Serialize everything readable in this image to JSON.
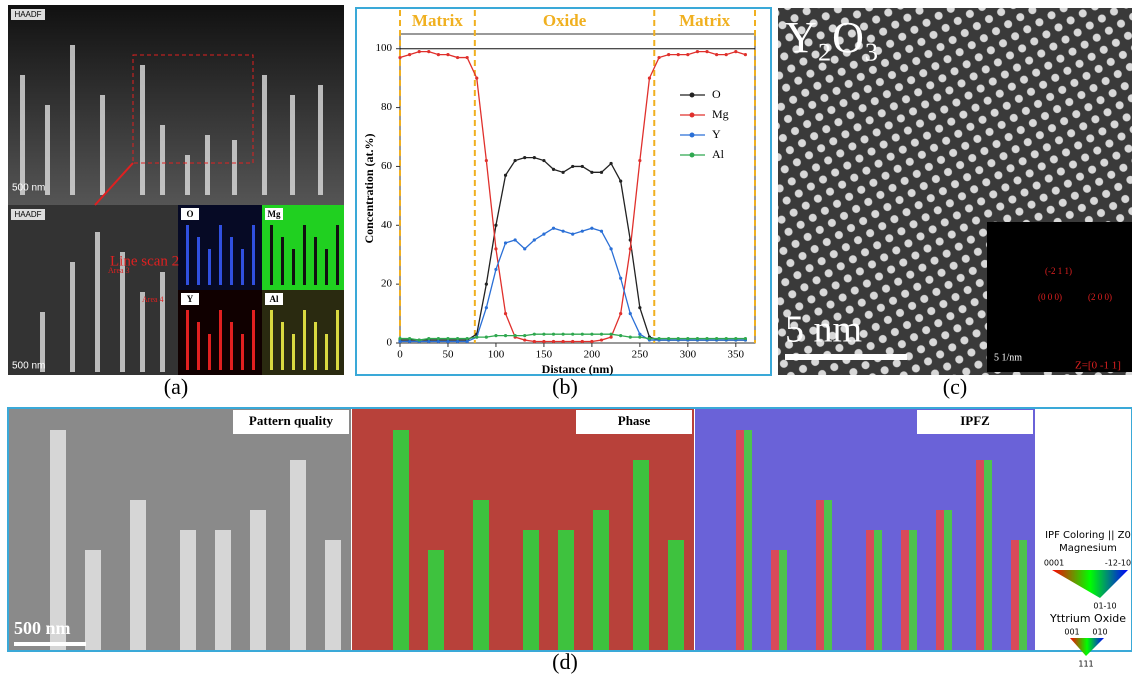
{
  "panel_a": {
    "label": "(a)",
    "top_tag": "HAADF",
    "top_scale": "500 nm",
    "bottom_tag": "HAADF",
    "bottom_scale": "500 nm",
    "line_scan": "Line scan 2",
    "area3": "Area 3",
    "area4": "Area 4",
    "maps": [
      "O",
      "Mg",
      "Y",
      "Al"
    ]
  },
  "chart_data": {
    "type": "line",
    "label": "(b)",
    "xlabel": "Distance (nm)",
    "ylabel": "Concentration (at.%)",
    "region_labels": [
      "Matrix",
      "Oxide",
      "Matrix"
    ],
    "boundaries": [
      78,
      265
    ],
    "hline": 100,
    "x": [
      0,
      10,
      20,
      30,
      40,
      50,
      60,
      70,
      80,
      90,
      100,
      110,
      120,
      130,
      140,
      150,
      160,
      170,
      180,
      190,
      200,
      210,
      220,
      230,
      240,
      250,
      260,
      270,
      280,
      290,
      300,
      310,
      320,
      330,
      340,
      350,
      360
    ],
    "xlim": [
      0,
      370
    ],
    "xticks": [
      0,
      50,
      100,
      150,
      200,
      250,
      300,
      350
    ],
    "ylim": [
      0,
      105
    ],
    "yticks": [
      0,
      20,
      40,
      60,
      80,
      100
    ],
    "series": [
      {
        "name": "O",
        "color": "#222222",
        "values": [
          1,
          1,
          1,
          1,
          1,
          1,
          1,
          1,
          3,
          20,
          40,
          57,
          62,
          63,
          63,
          62,
          59,
          58,
          60,
          60,
          58,
          58,
          61,
          55,
          35,
          12,
          2,
          1,
          1,
          1,
          1,
          1,
          1,
          1,
          1,
          1,
          1
        ]
      },
      {
        "name": "Mg",
        "color": "#e0302c",
        "values": [
          97,
          98,
          99,
          99,
          98,
          98,
          97,
          97,
          90,
          62,
          32,
          10,
          2,
          1,
          0.5,
          0.5,
          0.5,
          0.5,
          0.5,
          0.5,
          0.5,
          1,
          2,
          10,
          32,
          62,
          90,
          97,
          98,
          98,
          98,
          99,
          99,
          98,
          98,
          99,
          98
        ]
      },
      {
        "name": "Y",
        "color": "#2a6fd6",
        "values": [
          0.5,
          0.5,
          0.5,
          0.5,
          0.5,
          0.5,
          0.5,
          0.5,
          2,
          12,
          25,
          34,
          35,
          32,
          35,
          37,
          39,
          38,
          37,
          38,
          39,
          38,
          32,
          22,
          10,
          3,
          1,
          1,
          1,
          1,
          1,
          1,
          1,
          1,
          1,
          1,
          1
        ]
      },
      {
        "name": "Al",
        "color": "#2fa84f",
        "values": [
          1.5,
          1.5,
          1,
          1.5,
          1.5,
          1.5,
          1.5,
          1.5,
          2,
          2,
          2.5,
          2.5,
          2.5,
          2.5,
          3,
          3,
          3,
          3,
          3,
          3,
          3,
          3,
          3,
          2.5,
          2,
          2,
          1.5,
          1.5,
          1.5,
          1.5,
          1.5,
          1.5,
          1.5,
          1.5,
          1.5,
          1.5,
          1.5
        ]
      }
    ]
  },
  "panel_c": {
    "label": "(c)",
    "phase": "Y₂O₃",
    "scale": "5 nm",
    "fft_scale": "5 1/nm",
    "zone": "Z=[0 -1 1]",
    "spots": [
      "(-2 1 1)",
      "(0 0 0)",
      "(2 0 0)"
    ]
  },
  "panel_d": {
    "label": "(d)",
    "titles": [
      "Pattern quality",
      "Phase",
      "IPFZ"
    ],
    "scale": "500 nm",
    "key_title": "IPF Coloring || Z0",
    "mg": "Magnesium",
    "mg_labels": [
      "0001",
      "-12-10",
      "01-10"
    ],
    "yo": "Yttrium Oxide",
    "yo_labels": [
      "001",
      "010",
      "111"
    ]
  }
}
